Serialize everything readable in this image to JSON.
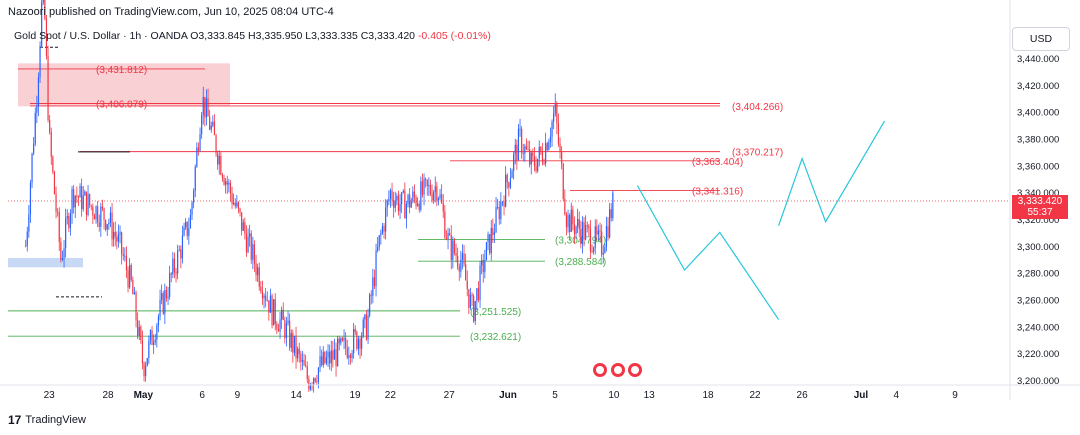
{
  "header": {
    "publisher": "Nazoori published on TradingView.com, Jun 10, 2025 08:04 UTC-4",
    "symbol": "Gold Spot / U.S. Dollar · 1h · OANDA",
    "ohlc": "O3,333.845  H3,335.950  L3,333.335  C3,333.420",
    "change": "-0.405 (-0.01%)"
  },
  "currency_button": "USD",
  "last_price": {
    "value": "3,333.420",
    "countdown": "55:37"
  },
  "footer": {
    "logo_mark": "17",
    "brand": "TradingView"
  },
  "colors": {
    "up": "#2962ff",
    "down": "#f23645",
    "resistance": "#f23645",
    "support": "#4caf50",
    "projection": "#26c6da",
    "zone": "#f8c8cc",
    "blue_zone": "#c8d9f5"
  },
  "chart_data": {
    "type": "candlestick",
    "symbol": "XAUUSD",
    "timeframe": "1h",
    "ylim": [
      3190,
      3460
    ],
    "y_ticks": [
      3200,
      3220,
      3240,
      3260,
      3280,
      3300,
      3320,
      3340,
      3360,
      3380,
      3400,
      3420,
      3440
    ],
    "y_tick_labels": [
      "3,200.000",
      "3,220.000",
      "3,240.000",
      "3,260.000",
      "3,280.000",
      "3,300.000",
      "3,320.000",
      "3,340.000",
      "3,360.000",
      "3,380.000",
      "3,400.000",
      "3,420.000",
      "3,440.000"
    ],
    "x_tick_labels": [
      "23",
      "28",
      "May",
      "6",
      "9",
      "14",
      "19",
      "22",
      "27",
      "Jun",
      "5",
      "10",
      "13",
      "18",
      "22",
      "26",
      "Jul",
      "4",
      "9"
    ],
    "x_tick_dates": [
      "2025-04-23",
      "2025-04-28",
      "2025-05-01",
      "2025-05-06",
      "2025-05-09",
      "2025-05-14",
      "2025-05-19",
      "2025-05-22",
      "2025-05-27",
      "2025-06-01",
      "2025-06-05",
      "2025-06-10",
      "2025-06-13",
      "2025-06-18",
      "2025-06-22",
      "2025-06-26",
      "2025-07-01",
      "2025-07-04",
      "2025-07-09"
    ],
    "price_path": [
      [
        "2025-04-21",
        3300
      ],
      [
        "2025-04-22",
        3420
      ],
      [
        "2025-04-22T12",
        3500
      ],
      [
        "2025-04-23",
        3380
      ],
      [
        "2025-04-24",
        3290
      ],
      [
        "2025-04-25",
        3340
      ],
      [
        "2025-04-28",
        3320
      ],
      [
        "2025-04-29",
        3300
      ],
      [
        "2025-04-30",
        3270
      ],
      [
        "2025-05-01",
        3210
      ],
      [
        "2025-05-02",
        3240
      ],
      [
        "2025-05-05",
        3320
      ],
      [
        "2025-05-06",
        3410
      ],
      [
        "2025-05-07",
        3380
      ],
      [
        "2025-05-08",
        3350
      ],
      [
        "2025-05-09",
        3325
      ],
      [
        "2025-05-12",
        3250
      ],
      [
        "2025-05-13",
        3240
      ],
      [
        "2025-05-14",
        3220
      ],
      [
        "2025-05-15",
        3200
      ],
      [
        "2025-05-16",
        3210
      ],
      [
        "2025-05-19",
        3230
      ],
      [
        "2025-05-20",
        3240
      ],
      [
        "2025-05-21",
        3300
      ],
      [
        "2025-05-22",
        3340
      ],
      [
        "2025-05-23",
        3330
      ],
      [
        "2025-05-26",
        3345
      ],
      [
        "2025-05-27",
        3300
      ],
      [
        "2025-05-28",
        3290
      ],
      [
        "2025-05-29",
        3250
      ],
      [
        "2025-05-30",
        3290
      ],
      [
        "2025-06-02",
        3380
      ],
      [
        "2025-06-03",
        3360
      ],
      [
        "2025-06-04",
        3370
      ],
      [
        "2025-06-05",
        3400
      ],
      [
        "2025-06-06",
        3320
      ],
      [
        "2025-06-09",
        3300
      ],
      [
        "2025-06-10",
        3333.42
      ]
    ],
    "resistance_levels": [
      {
        "label": "(3,431.812)",
        "value": 3431.812
      },
      {
        "label": "(3,406.079)",
        "value": 3406.079
      },
      {
        "label": "(3,404.266)",
        "value": 3404.266
      },
      {
        "label": "(3,370.217)",
        "value": 3370.217
      },
      {
        "label": "(3,363.404)",
        "value": 3363.404
      },
      {
        "label": "(3,341.316)",
        "value": 3341.316
      }
    ],
    "support_levels": [
      {
        "label": "(3,304.794)",
        "value": 3304.794
      },
      {
        "label": "(3,288.584)",
        "value": 3288.584
      },
      {
        "label": "(3,251.525)",
        "value": 3251.525
      },
      {
        "label": "(3,232.621)",
        "value": 3232.621
      }
    ],
    "projection_path": [
      [
        "2025-06-12",
        3345
      ],
      [
        "2025-06-16",
        3282
      ],
      [
        "2025-06-19",
        3310
      ],
      [
        "2025-06-24",
        3245
      ],
      [
        "2025-06-24",
        3315
      ],
      [
        "2025-06-26",
        3365
      ],
      [
        "2025-06-28",
        3318
      ],
      [
        "2025-07-03",
        3393
      ]
    ],
    "current_price": 3333.42
  }
}
